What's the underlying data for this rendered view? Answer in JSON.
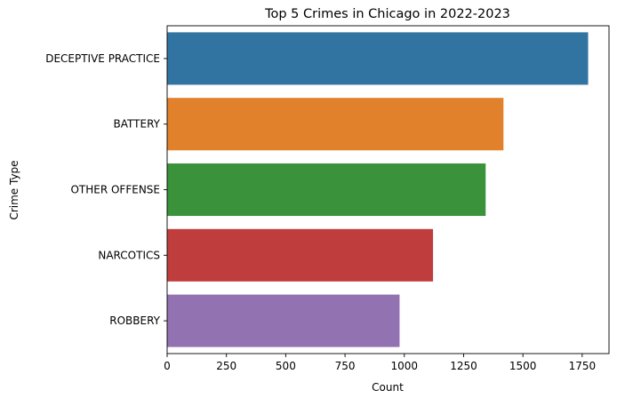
{
  "chart_data": {
    "type": "bar",
    "orientation": "horizontal",
    "title": "Top 5 Crimes in Chicago in 2022-2023",
    "xlabel": "Count",
    "ylabel": "Crime Type",
    "categories": [
      "DECEPTIVE PRACTICE",
      "BATTERY",
      "OTHER OFFENSE",
      "NARCOTICS",
      "ROBBERY"
    ],
    "values": [
      1775,
      1418,
      1343,
      1121,
      980
    ],
    "colors": [
      "#3274a1",
      "#e1812c",
      "#3a923a",
      "#c03d3e",
      "#9372b2"
    ],
    "xlim": [
      0,
      1863
    ],
    "xticks": [
      0,
      250,
      500,
      750,
      1000,
      1250,
      1500,
      1750
    ],
    "grid": false,
    "legend": "none"
  }
}
